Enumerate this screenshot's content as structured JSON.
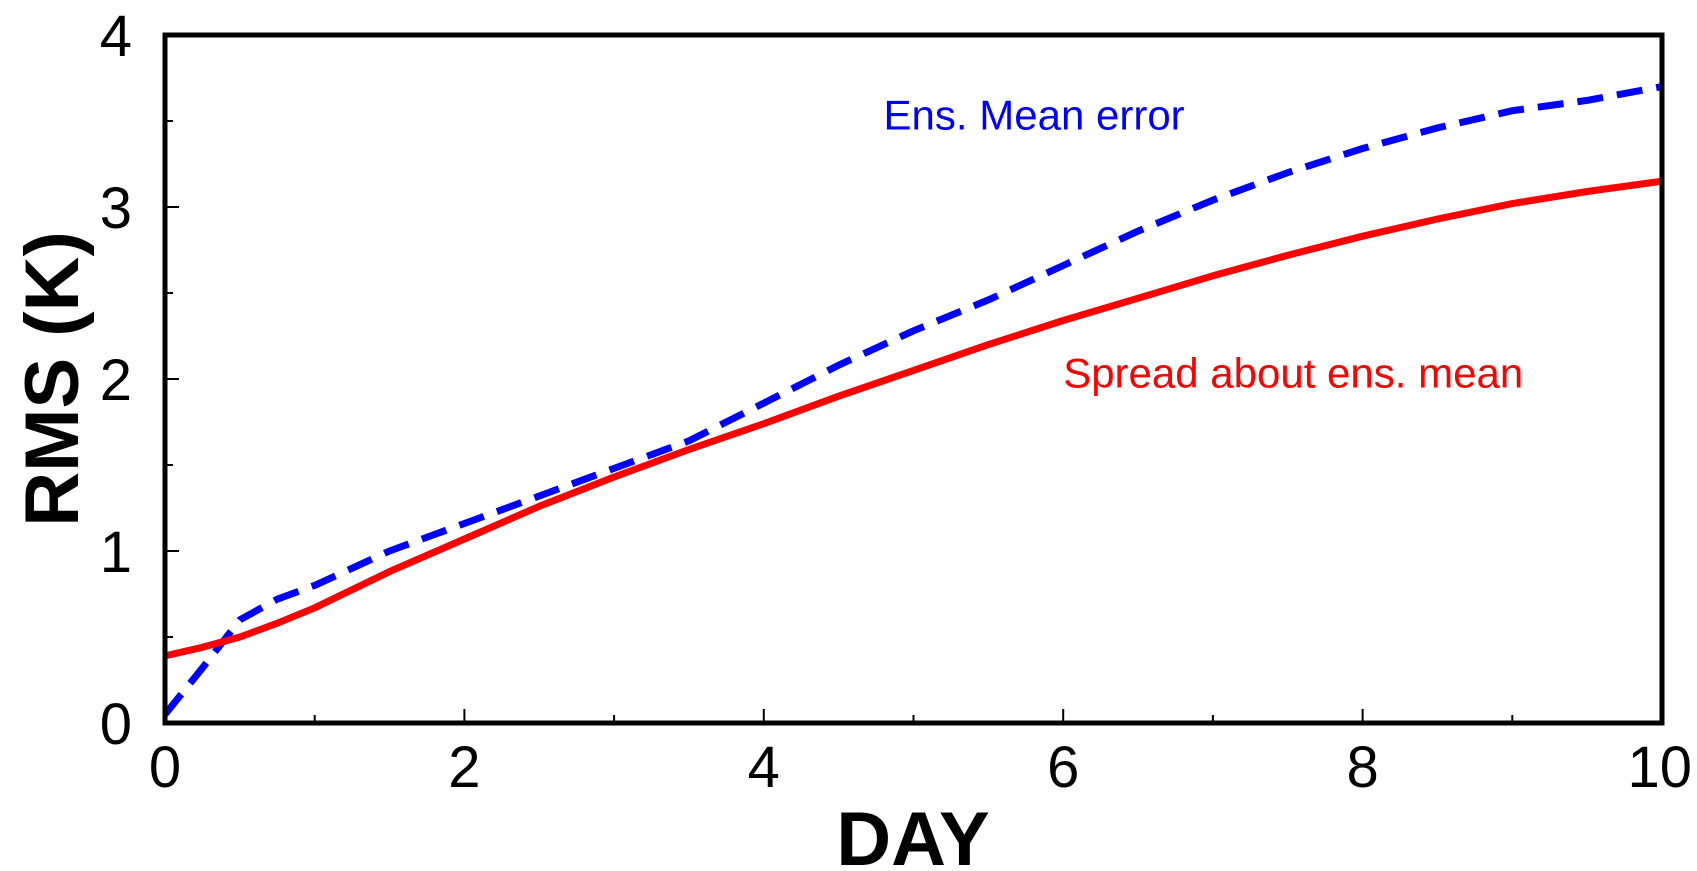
{
  "chart_data": {
    "type": "line",
    "title": "",
    "xlabel": "DAY",
    "ylabel": "RMS (K)",
    "xlim": [
      0,
      10
    ],
    "ylim": [
      0,
      4
    ],
    "x_major_ticks": [
      0,
      2,
      4,
      6,
      8,
      10
    ],
    "x_minor_ticks": [
      1,
      3,
      5,
      7,
      9
    ],
    "y_major_ticks": [
      0,
      1,
      2,
      3,
      4
    ],
    "y_minor_ticks": [
      0.5,
      1.5,
      2.5,
      3.5
    ],
    "x_tick_labels": [
      "0",
      "2",
      "4",
      "6",
      "8",
      "10"
    ],
    "y_tick_labels": [
      "0",
      "1",
      "2",
      "3",
      "4"
    ],
    "grid": false,
    "legend": "none",
    "series": [
      {
        "name": "Ens. Mean error",
        "color": "#0000ff",
        "line_style": "dashed",
        "label_at": [
          4.8,
          3.45
        ],
        "x": [
          0,
          0.25,
          0.5,
          0.75,
          1,
          1.5,
          2,
          2.5,
          3,
          3.5,
          4,
          4.5,
          5,
          5.5,
          6,
          6.5,
          7,
          7.5,
          8,
          8.5,
          9,
          9.5,
          10
        ],
        "y": [
          0.05,
          0.32,
          0.6,
          0.72,
          0.8,
          1.0,
          1.16,
          1.32,
          1.48,
          1.64,
          1.86,
          2.08,
          2.28,
          2.46,
          2.66,
          2.86,
          3.04,
          3.2,
          3.34,
          3.46,
          3.56,
          3.62,
          3.7
        ]
      },
      {
        "name": "Spread about ens. mean",
        "color": "#ff0000",
        "line_style": "solid",
        "label_at": [
          6.0,
          1.95
        ],
        "x": [
          0,
          0.25,
          0.5,
          0.75,
          1,
          1.5,
          2,
          2.5,
          3,
          3.5,
          4,
          4.5,
          5,
          5.5,
          6,
          6.5,
          7,
          7.5,
          8,
          8.5,
          9,
          9.5,
          10
        ],
        "y": [
          0.39,
          0.44,
          0.5,
          0.58,
          0.67,
          0.88,
          1.07,
          1.26,
          1.43,
          1.59,
          1.74,
          1.9,
          2.05,
          2.2,
          2.34,
          2.47,
          2.6,
          2.72,
          2.83,
          2.93,
          3.02,
          3.09,
          3.15
        ]
      }
    ]
  }
}
